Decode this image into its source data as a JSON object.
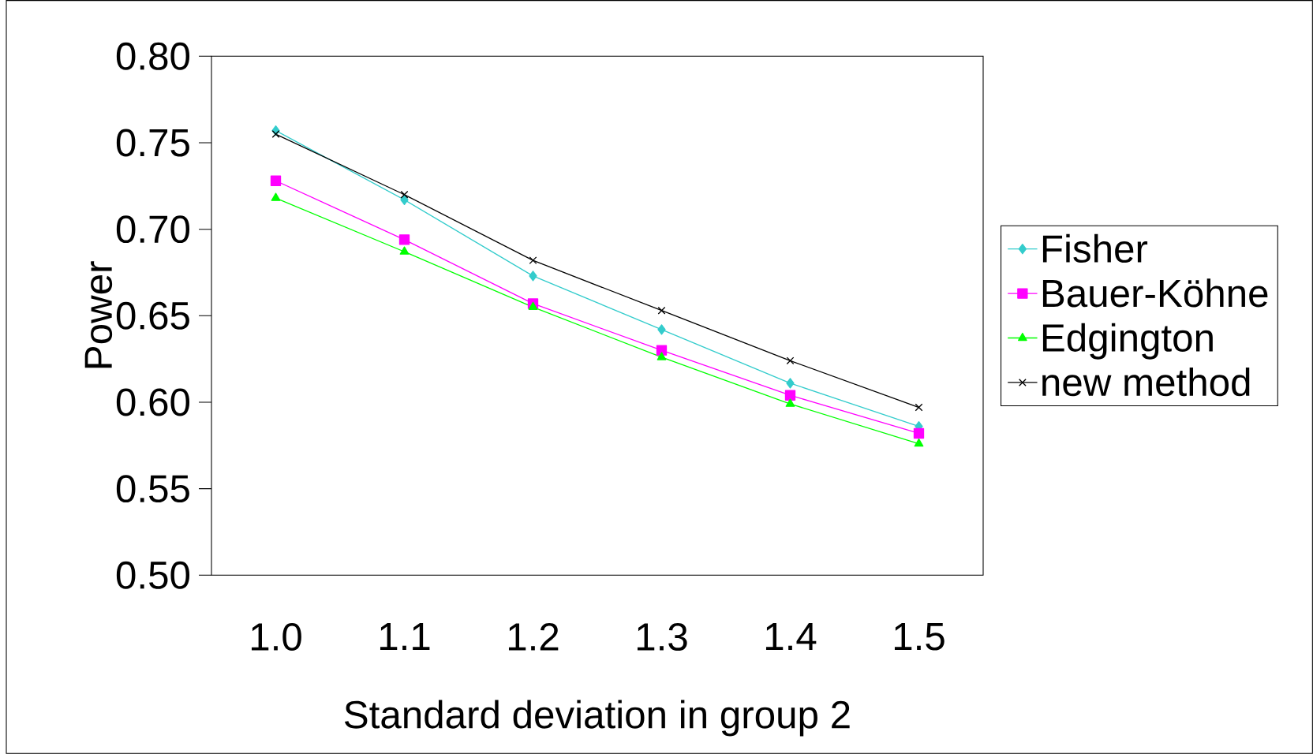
{
  "chart_data": {
    "type": "line",
    "xlabel": "Standard deviation in group 2",
    "ylabel": "Power",
    "categories": [
      "1.0",
      "1.1",
      "1.2",
      "1.3",
      "1.4",
      "1.5"
    ],
    "series": [
      {
        "name": "Fisher",
        "color": "#33cccc",
        "marker": "diamond",
        "values": [
          0.757,
          0.717,
          0.673,
          0.642,
          0.611,
          0.586
        ]
      },
      {
        "name": "Bauer-Köhne",
        "color": "#ff00ff",
        "marker": "square",
        "values": [
          0.728,
          0.694,
          0.657,
          0.63,
          0.604,
          0.582
        ]
      },
      {
        "name": "Edgington",
        "color": "#00ff00",
        "marker": "triangle",
        "values": [
          0.718,
          0.687,
          0.655,
          0.626,
          0.599,
          0.576
        ]
      },
      {
        "name": "new method",
        "color": "#000000",
        "marker": "cross",
        "values": [
          0.755,
          0.72,
          0.682,
          0.653,
          0.624,
          0.597
        ]
      }
    ],
    "ylim": [
      0.5,
      0.8
    ],
    "yticks": [
      {
        "value": 0.5,
        "label": "0.50"
      },
      {
        "value": 0.55,
        "label": "0.55"
      },
      {
        "value": 0.6,
        "label": "0.60"
      },
      {
        "value": 0.65,
        "label": "0.65"
      },
      {
        "value": 0.7,
        "label": "0.70"
      },
      {
        "value": 0.75,
        "label": "0.75"
      },
      {
        "value": 0.8,
        "label": "0.80"
      }
    ],
    "grid": false,
    "legend": "right",
    "line_style": "solid"
  }
}
